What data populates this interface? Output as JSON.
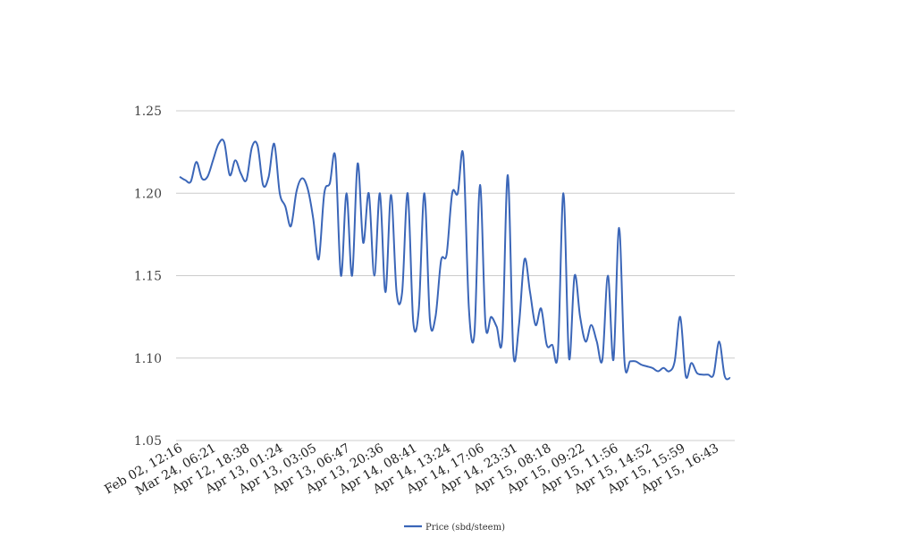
{
  "chart_data": {
    "type": "line",
    "title": "",
    "xlabel": "",
    "ylabel": "",
    "ylim": [
      1.05,
      1.25
    ],
    "y_ticks": [
      "1.05",
      "1.10",
      "1.15",
      "1.20",
      "1.25"
    ],
    "grid": "horizontal",
    "legend_position": "bottom",
    "colors": {
      "series": "#3b66b8",
      "grid": "#cccccc",
      "axis_text": "#444444"
    },
    "x_tick_labels": [
      "Feb 02, 12:16",
      "Mar 24, 06:21",
      "Apr 12, 18:38",
      "Apr 13, 01:24",
      "Apr 13, 03:05",
      "Apr 13, 06:47",
      "Apr 13, 20:36",
      "Apr 14, 08:41",
      "Apr 14, 13:24",
      "Apr 14, 17:06",
      "Apr 14, 23:31",
      "Apr 15, 08:18",
      "Apr 15, 09:22",
      "Apr 15, 11:56",
      "Apr 15, 14:52",
      "Apr 15, 15:59",
      "Apr 15, 16:43"
    ],
    "series": [
      {
        "name": "Price (sbd/steem)",
        "values": [
          1.21,
          1.208,
          1.207,
          1.219,
          1.209,
          1.21,
          1.22,
          1.23,
          1.231,
          1.211,
          1.22,
          1.212,
          1.208,
          1.228,
          1.229,
          1.205,
          1.21,
          1.23,
          1.2,
          1.192,
          1.18,
          1.201,
          1.209,
          1.203,
          1.185,
          1.16,
          1.2,
          1.206,
          1.222,
          1.15,
          1.2,
          1.15,
          1.218,
          1.17,
          1.2,
          1.15,
          1.2,
          1.14,
          1.199,
          1.14,
          1.14,
          1.2,
          1.122,
          1.13,
          1.2,
          1.123,
          1.125,
          1.159,
          1.163,
          1.2,
          1.2,
          1.223,
          1.13,
          1.115,
          1.205,
          1.12,
          1.125,
          1.119,
          1.112,
          1.211,
          1.103,
          1.12,
          1.16,
          1.14,
          1.12,
          1.13,
          1.108,
          1.108,
          1.103,
          1.2,
          1.1,
          1.15,
          1.125,
          1.11,
          1.12,
          1.11,
          1.099,
          1.15,
          1.099,
          1.179,
          1.097,
          1.098,
          1.098,
          1.096,
          1.095,
          1.094,
          1.092,
          1.094,
          1.092,
          1.098,
          1.125,
          1.089,
          1.097,
          1.091,
          1.09,
          1.09,
          1.09,
          1.11,
          1.089,
          1.088
        ]
      }
    ]
  }
}
